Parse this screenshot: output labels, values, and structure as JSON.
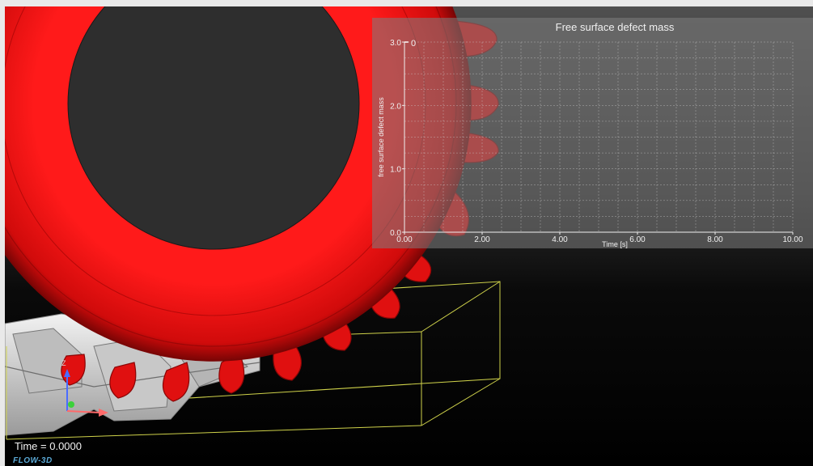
{
  "viewport": {
    "time_readout": "Time = 0.0000",
    "logo": "FLOW-3D",
    "triad_axis": "Z"
  },
  "colors": {
    "gear": "#e51010",
    "gear_dark": "#8a0606",
    "hub": "#2d2d2d",
    "bounding_box": "#cfd24a",
    "part": "#d8d8d8"
  },
  "chart_data": {
    "type": "line",
    "title": "Free surface defect mass",
    "xlabel": "Time [s]",
    "ylabel": "free surface defect mass",
    "xlim": [
      0,
      10
    ],
    "ylim": [
      0,
      3
    ],
    "x_ticks": [
      "0.00",
      "2.00",
      "4.00",
      "6.00",
      "8.00",
      "10.00"
    ],
    "y_ticks": [
      "0.0",
      "1.0",
      "2.0",
      "3.0"
    ],
    "series": [
      {
        "x": [
          0,
          0.1
        ],
        "y": [
          3.0,
          3.0
        ],
        "label": "0"
      }
    ],
    "grid": true
  }
}
